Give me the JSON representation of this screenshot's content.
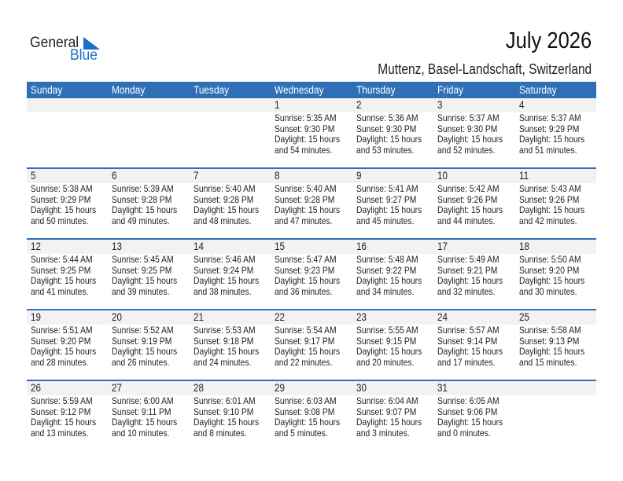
{
  "logo": {
    "text_general": "General",
    "text_blue": "Blue",
    "brand_color": "#1f6fc5"
  },
  "title": "July 2026",
  "subtitle": "Muttenz, Basel-Landschaft, Switzerland",
  "header_color": "#2e6fb5",
  "weekdays": [
    "Sunday",
    "Monday",
    "Tuesday",
    "Wednesday",
    "Thursday",
    "Friday",
    "Saturday"
  ],
  "weeks": [
    [
      null,
      null,
      null,
      {
        "day": "1",
        "sunrise": "Sunrise: 5:35 AM",
        "sunset": "Sunset: 9:30 PM",
        "daylight1": "Daylight: 15 hours",
        "daylight2": "and 54 minutes."
      },
      {
        "day": "2",
        "sunrise": "Sunrise: 5:36 AM",
        "sunset": "Sunset: 9:30 PM",
        "daylight1": "Daylight: 15 hours",
        "daylight2": "and 53 minutes."
      },
      {
        "day": "3",
        "sunrise": "Sunrise: 5:37 AM",
        "sunset": "Sunset: 9:30 PM",
        "daylight1": "Daylight: 15 hours",
        "daylight2": "and 52 minutes."
      },
      {
        "day": "4",
        "sunrise": "Sunrise: 5:37 AM",
        "sunset": "Sunset: 9:29 PM",
        "daylight1": "Daylight: 15 hours",
        "daylight2": "and 51 minutes."
      }
    ],
    [
      {
        "day": "5",
        "sunrise": "Sunrise: 5:38 AM",
        "sunset": "Sunset: 9:29 PM",
        "daylight1": "Daylight: 15 hours",
        "daylight2": "and 50 minutes."
      },
      {
        "day": "6",
        "sunrise": "Sunrise: 5:39 AM",
        "sunset": "Sunset: 9:28 PM",
        "daylight1": "Daylight: 15 hours",
        "daylight2": "and 49 minutes."
      },
      {
        "day": "7",
        "sunrise": "Sunrise: 5:40 AM",
        "sunset": "Sunset: 9:28 PM",
        "daylight1": "Daylight: 15 hours",
        "daylight2": "and 48 minutes."
      },
      {
        "day": "8",
        "sunrise": "Sunrise: 5:40 AM",
        "sunset": "Sunset: 9:28 PM",
        "daylight1": "Daylight: 15 hours",
        "daylight2": "and 47 minutes."
      },
      {
        "day": "9",
        "sunrise": "Sunrise: 5:41 AM",
        "sunset": "Sunset: 9:27 PM",
        "daylight1": "Daylight: 15 hours",
        "daylight2": "and 45 minutes."
      },
      {
        "day": "10",
        "sunrise": "Sunrise: 5:42 AM",
        "sunset": "Sunset: 9:26 PM",
        "daylight1": "Daylight: 15 hours",
        "daylight2": "and 44 minutes."
      },
      {
        "day": "11",
        "sunrise": "Sunrise: 5:43 AM",
        "sunset": "Sunset: 9:26 PM",
        "daylight1": "Daylight: 15 hours",
        "daylight2": "and 42 minutes."
      }
    ],
    [
      {
        "day": "12",
        "sunrise": "Sunrise: 5:44 AM",
        "sunset": "Sunset: 9:25 PM",
        "daylight1": "Daylight: 15 hours",
        "daylight2": "and 41 minutes."
      },
      {
        "day": "13",
        "sunrise": "Sunrise: 5:45 AM",
        "sunset": "Sunset: 9:25 PM",
        "daylight1": "Daylight: 15 hours",
        "daylight2": "and 39 minutes."
      },
      {
        "day": "14",
        "sunrise": "Sunrise: 5:46 AM",
        "sunset": "Sunset: 9:24 PM",
        "daylight1": "Daylight: 15 hours",
        "daylight2": "and 38 minutes."
      },
      {
        "day": "15",
        "sunrise": "Sunrise: 5:47 AM",
        "sunset": "Sunset: 9:23 PM",
        "daylight1": "Daylight: 15 hours",
        "daylight2": "and 36 minutes."
      },
      {
        "day": "16",
        "sunrise": "Sunrise: 5:48 AM",
        "sunset": "Sunset: 9:22 PM",
        "daylight1": "Daylight: 15 hours",
        "daylight2": "and 34 minutes."
      },
      {
        "day": "17",
        "sunrise": "Sunrise: 5:49 AM",
        "sunset": "Sunset: 9:21 PM",
        "daylight1": "Daylight: 15 hours",
        "daylight2": "and 32 minutes."
      },
      {
        "day": "18",
        "sunrise": "Sunrise: 5:50 AM",
        "sunset": "Sunset: 9:20 PM",
        "daylight1": "Daylight: 15 hours",
        "daylight2": "and 30 minutes."
      }
    ],
    [
      {
        "day": "19",
        "sunrise": "Sunrise: 5:51 AM",
        "sunset": "Sunset: 9:20 PM",
        "daylight1": "Daylight: 15 hours",
        "daylight2": "and 28 minutes."
      },
      {
        "day": "20",
        "sunrise": "Sunrise: 5:52 AM",
        "sunset": "Sunset: 9:19 PM",
        "daylight1": "Daylight: 15 hours",
        "daylight2": "and 26 minutes."
      },
      {
        "day": "21",
        "sunrise": "Sunrise: 5:53 AM",
        "sunset": "Sunset: 9:18 PM",
        "daylight1": "Daylight: 15 hours",
        "daylight2": "and 24 minutes."
      },
      {
        "day": "22",
        "sunrise": "Sunrise: 5:54 AM",
        "sunset": "Sunset: 9:17 PM",
        "daylight1": "Daylight: 15 hours",
        "daylight2": "and 22 minutes."
      },
      {
        "day": "23",
        "sunrise": "Sunrise: 5:55 AM",
        "sunset": "Sunset: 9:15 PM",
        "daylight1": "Daylight: 15 hours",
        "daylight2": "and 20 minutes."
      },
      {
        "day": "24",
        "sunrise": "Sunrise: 5:57 AM",
        "sunset": "Sunset: 9:14 PM",
        "daylight1": "Daylight: 15 hours",
        "daylight2": "and 17 minutes."
      },
      {
        "day": "25",
        "sunrise": "Sunrise: 5:58 AM",
        "sunset": "Sunset: 9:13 PM",
        "daylight1": "Daylight: 15 hours",
        "daylight2": "and 15 minutes."
      }
    ],
    [
      {
        "day": "26",
        "sunrise": "Sunrise: 5:59 AM",
        "sunset": "Sunset: 9:12 PM",
        "daylight1": "Daylight: 15 hours",
        "daylight2": "and 13 minutes."
      },
      {
        "day": "27",
        "sunrise": "Sunrise: 6:00 AM",
        "sunset": "Sunset: 9:11 PM",
        "daylight1": "Daylight: 15 hours",
        "daylight2": "and 10 minutes."
      },
      {
        "day": "28",
        "sunrise": "Sunrise: 6:01 AM",
        "sunset": "Sunset: 9:10 PM",
        "daylight1": "Daylight: 15 hours",
        "daylight2": "and 8 minutes."
      },
      {
        "day": "29",
        "sunrise": "Sunrise: 6:03 AM",
        "sunset": "Sunset: 9:08 PM",
        "daylight1": "Daylight: 15 hours",
        "daylight2": "and 5 minutes."
      },
      {
        "day": "30",
        "sunrise": "Sunrise: 6:04 AM",
        "sunset": "Sunset: 9:07 PM",
        "daylight1": "Daylight: 15 hours",
        "daylight2": "and 3 minutes."
      },
      {
        "day": "31",
        "sunrise": "Sunrise: 6:05 AM",
        "sunset": "Sunset: 9:06 PM",
        "daylight1": "Daylight: 15 hours",
        "daylight2": "and 0 minutes."
      },
      null
    ]
  ]
}
